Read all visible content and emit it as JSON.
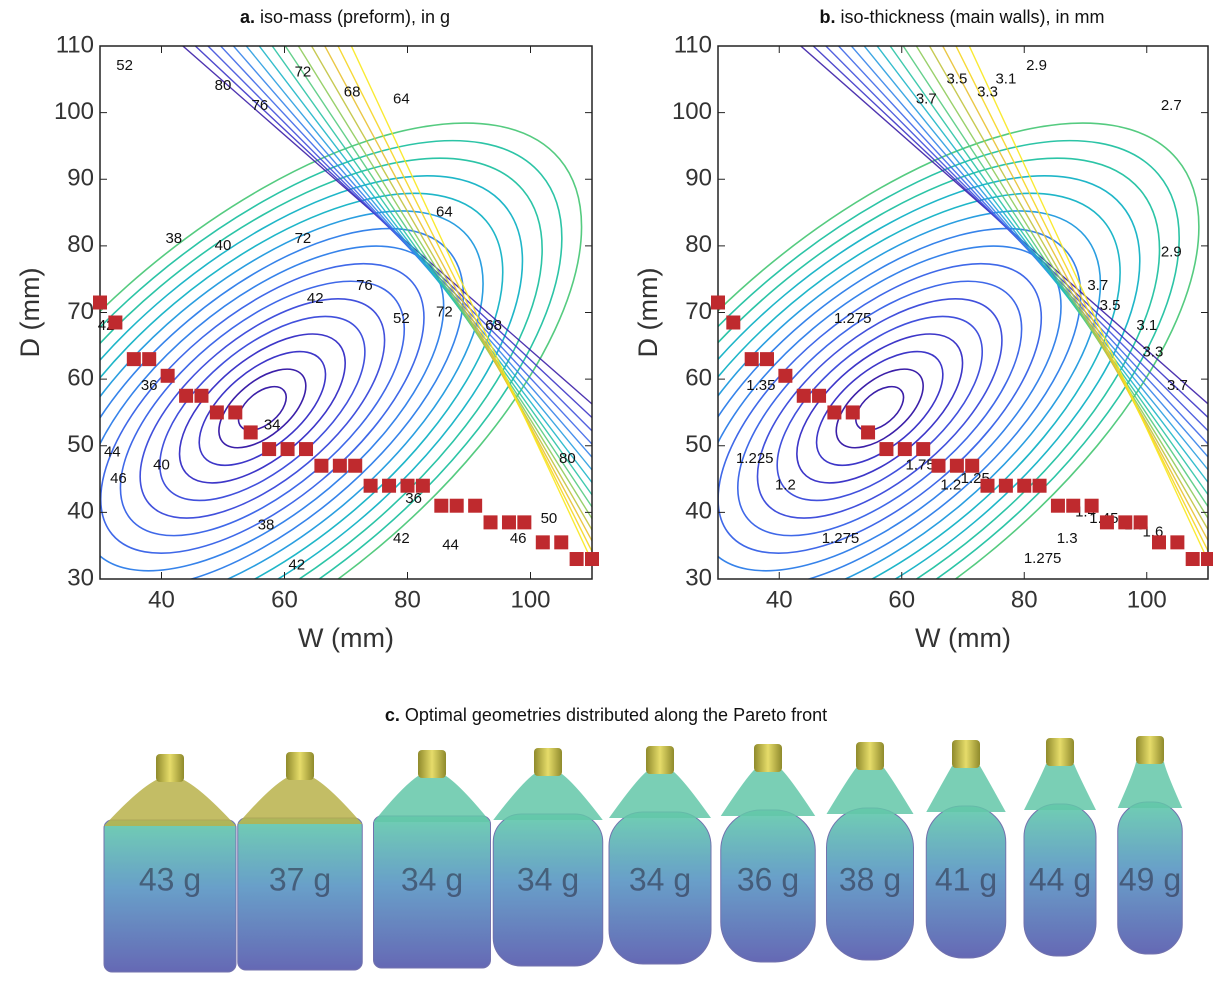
{
  "chart_data": [
    {
      "type": "scatter",
      "panel": "a.",
      "title": "iso-mass (preform), in g",
      "xlabel": "W (mm)",
      "ylabel": "D (mm)",
      "xlim": [
        30,
        110
      ],
      "ylim": [
        30,
        110
      ],
      "xticks": [
        40,
        60,
        80,
        100
      ],
      "yticks": [
        30,
        40,
        50,
        60,
        70,
        80,
        90,
        100,
        110
      ],
      "color": "#bf2a2e",
      "x": [
        30,
        32.5,
        35.5,
        38,
        41,
        44,
        46.5,
        49,
        52,
        54.5,
        57.5,
        60.5,
        63.5,
        66,
        69,
        71.5,
        74,
        77,
        80,
        82.5,
        85.5,
        88,
        91,
        93.5,
        96.5,
        99,
        102,
        105,
        107.5,
        110
      ],
      "values": [
        71.5,
        68.5,
        63,
        63,
        60.5,
        57.5,
        57.5,
        55,
        55,
        52,
        49.5,
        49.5,
        49.5,
        47,
        47,
        47,
        44,
        44,
        44,
        44,
        41,
        41,
        41,
        38.5,
        38.5,
        38.5,
        35.5,
        35.5,
        33,
        33
      ],
      "contour_labels": [
        {
          "value": 52,
          "x": 34,
          "y": 107
        },
        {
          "value": 80,
          "x": 50,
          "y": 104
        },
        {
          "value": 76,
          "x": 56,
          "y": 101
        },
        {
          "value": 72,
          "x": 63,
          "y": 106
        },
        {
          "value": 68,
          "x": 71,
          "y": 103
        },
        {
          "value": 64,
          "x": 79,
          "y": 102
        },
        {
          "value": 64,
          "x": 86,
          "y": 85
        },
        {
          "value": 72,
          "x": 63,
          "y": 81
        },
        {
          "value": 76,
          "x": 73,
          "y": 74
        },
        {
          "value": 72,
          "x": 86,
          "y": 70
        },
        {
          "value": 68,
          "x": 94,
          "y": 68
        },
        {
          "value": 52,
          "x": 79,
          "y": 69
        },
        {
          "value": 42,
          "x": 65,
          "y": 72
        },
        {
          "value": 38,
          "x": 42,
          "y": 81
        },
        {
          "value": 40,
          "x": 50,
          "y": 80
        },
        {
          "value": 36,
          "x": 38,
          "y": 59
        },
        {
          "value": 34,
          "x": 58,
          "y": 53
        },
        {
          "value": 40,
          "x": 40,
          "y": 47
        },
        {
          "value": 38,
          "x": 57,
          "y": 38
        },
        {
          "value": 42,
          "x": 79,
          "y": 36
        },
        {
          "value": 44,
          "x": 87,
          "y": 35
        },
        {
          "value": 46,
          "x": 98,
          "y": 36
        },
        {
          "value": 50,
          "x": 103,
          "y": 39
        },
        {
          "value": 42,
          "x": 62,
          "y": 32
        },
        {
          "value": 44,
          "x": 32,
          "y": 49
        },
        {
          "value": 46,
          "x": 33,
          "y": 45
        },
        {
          "value": 42,
          "x": 31,
          "y": 68
        },
        {
          "value": 36,
          "x": 81,
          "y": 42
        },
        {
          "value": 80,
          "x": 106,
          "y": 48
        }
      ]
    },
    {
      "type": "scatter",
      "panel": "b.",
      "title": "iso-thickness (main walls), in mm",
      "xlabel": "W (mm)",
      "ylabel": "D (mm)",
      "xlim": [
        30,
        110
      ],
      "ylim": [
        30,
        110
      ],
      "xticks": [
        40,
        60,
        80,
        100
      ],
      "yticks": [
        30,
        40,
        50,
        60,
        70,
        80,
        90,
        100,
        110
      ],
      "color": "#bf2a2e",
      "x": [
        30,
        32.5,
        35.5,
        38,
        41,
        44,
        46.5,
        49,
        52,
        54.5,
        57.5,
        60.5,
        63.5,
        66,
        69,
        71.5,
        74,
        77,
        80,
        82.5,
        85.5,
        88,
        91,
        93.5,
        96.5,
        99,
        102,
        105,
        107.5,
        110
      ],
      "values": [
        71.5,
        68.5,
        63,
        63,
        60.5,
        57.5,
        57.5,
        55,
        55,
        52,
        49.5,
        49.5,
        49.5,
        47,
        47,
        47,
        44,
        44,
        44,
        44,
        41,
        41,
        41,
        38.5,
        38.5,
        38.5,
        35.5,
        35.5,
        33,
        33
      ],
      "contour_labels": [
        {
          "value": 3.7,
          "x": 64,
          "y": 102
        },
        {
          "value": 3.5,
          "x": 69,
          "y": 105
        },
        {
          "value": 3.3,
          "x": 74,
          "y": 103
        },
        {
          "value": 3.1,
          "x": 77,
          "y": 105
        },
        {
          "value": 2.9,
          "x": 82,
          "y": 107
        },
        {
          "value": 2.7,
          "x": 104,
          "y": 101
        },
        {
          "value": 2.9,
          "x": 104,
          "y": 79
        },
        {
          "value": 3.7,
          "x": 92,
          "y": 74
        },
        {
          "value": 3.5,
          "x": 94,
          "y": 71
        },
        {
          "value": 3.1,
          "x": 100,
          "y": 68
        },
        {
          "value": 3.3,
          "x": 101,
          "y": 64
        },
        {
          "value": 3.7,
          "x": 105,
          "y": 59
        },
        {
          "value": 1.275,
          "x": 52,
          "y": 69
        },
        {
          "value": 1.35,
          "x": 37,
          "y": 59
        },
        {
          "value": 1.225,
          "x": 36,
          "y": 48
        },
        {
          "value": 1.2,
          "x": 41,
          "y": 44
        },
        {
          "value": 1.2,
          "x": 68,
          "y": 44
        },
        {
          "value": 1.25,
          "x": 72,
          "y": 45
        },
        {
          "value": 1.275,
          "x": 50,
          "y": 36
        },
        {
          "value": 1.275,
          "x": 83,
          "y": 33
        },
        {
          "value": 1.3,
          "x": 87,
          "y": 36
        },
        {
          "value": 1.45,
          "x": 93,
          "y": 39
        },
        {
          "value": 1.5,
          "x": 98,
          "y": 38
        },
        {
          "value": 1.75,
          "x": 63,
          "y": 47
        },
        {
          "value": 1.4,
          "x": 90,
          "y": 40
        },
        {
          "value": 1.6,
          "x": 101,
          "y": 37
        }
      ]
    }
  ],
  "geometries": {
    "panel": "c.",
    "title": "Optimal geometries distributed along the Pareto front",
    "labels": [
      "43 g",
      "37 g",
      "34 g",
      "34 g",
      "34 g",
      "36 g",
      "38 g",
      "41 g",
      "44 g",
      "49 g"
    ]
  }
}
